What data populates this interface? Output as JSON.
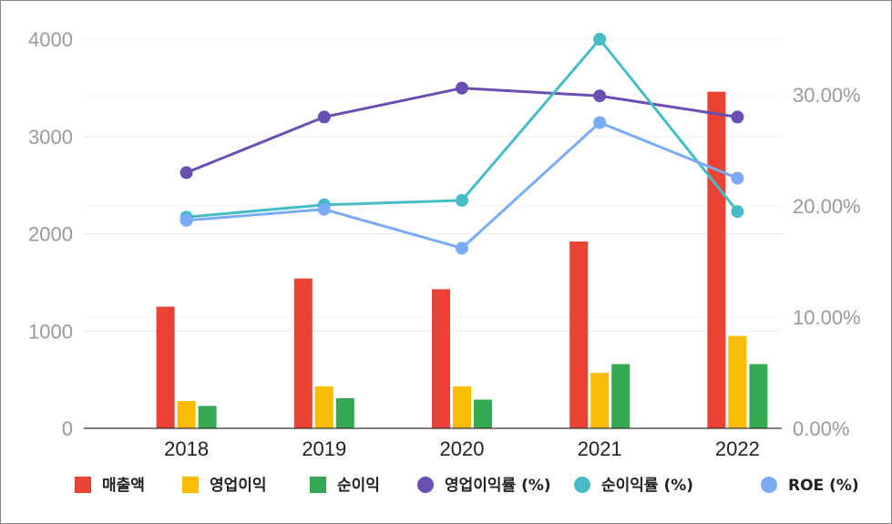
{
  "chart_data": {
    "type": "bar+line",
    "categories": [
      "2018",
      "2019",
      "2020",
      "2021",
      "2022"
    ],
    "bar_series": [
      {
        "name": "매출액",
        "color": "#ea4335",
        "values": [
          1250,
          1540,
          1430,
          1920,
          3460
        ]
      },
      {
        "name": "영업이익",
        "color": "#fbbc04",
        "values": [
          280,
          430,
          430,
          570,
          950
        ]
      },
      {
        "name": "순이익",
        "color": "#34a853",
        "values": [
          230,
          310,
          295,
          660,
          660
        ]
      }
    ],
    "line_series": [
      {
        "name": "영업이익률 (%)",
        "color": "#6a4fb3",
        "values": [
          23.0,
          28.0,
          30.6,
          29.9,
          28.0
        ]
      },
      {
        "name": "순이익률 (%)",
        "color": "#46bdc6",
        "values": [
          19.0,
          20.1,
          20.5,
          35.0,
          19.5
        ]
      },
      {
        "name": "ROE (%)",
        "color": "#7baaf7",
        "values": [
          18.7,
          19.7,
          16.2,
          27.5,
          22.5
        ]
      }
    ],
    "y_left": {
      "min": 0,
      "max": 4000,
      "ticks": [
        "0",
        "1000",
        "2000",
        "3000",
        "4000"
      ]
    },
    "y_right": {
      "min": 0,
      "max": 35,
      "ticks": [
        "0.00%",
        "10.00%",
        "20.00%",
        "30.00%"
      ],
      "tick_values": [
        0,
        10,
        20,
        30
      ]
    },
    "grid": true,
    "legend_position": "bottom"
  }
}
